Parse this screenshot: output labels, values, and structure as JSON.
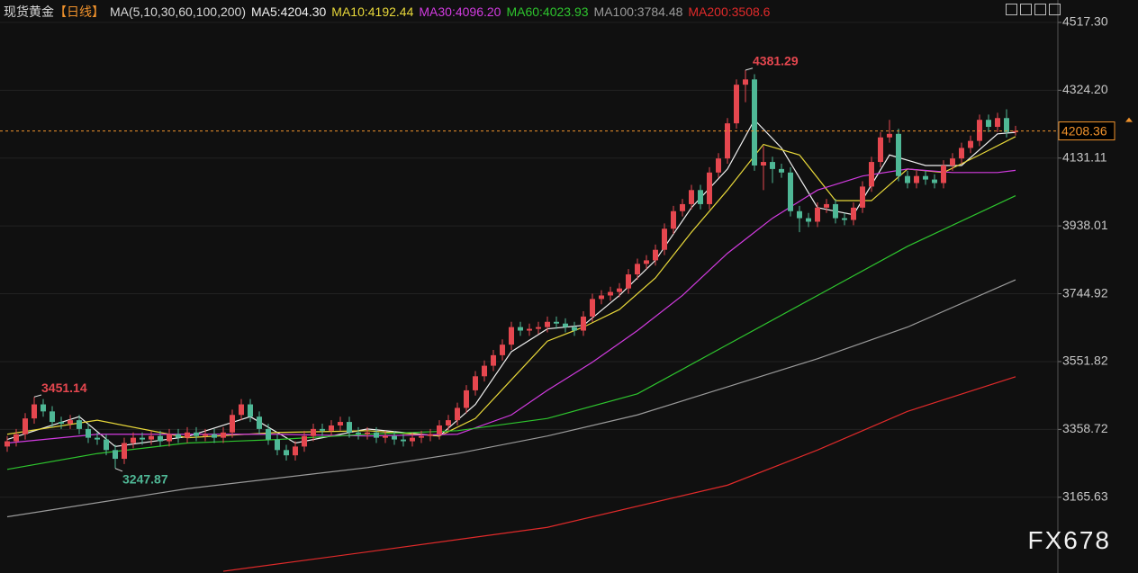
{
  "chart_data": {
    "type": "candlestick",
    "title": "现货黄金",
    "period": "【日线】",
    "indicator": "MA(5,10,30,60,100,200)",
    "watermark": "FX678",
    "up_color": "#e5474f",
    "down_color": "#4fb896",
    "open": [
      3310,
      3325,
      3345,
      3390,
      3430,
      3410,
      3380,
      3375,
      3385,
      3360,
      3335,
      3330,
      3300,
      3275,
      3320,
      3335,
      3330,
      3340,
      3325,
      3345,
      3335,
      3350,
      3340,
      3345,
      3335,
      3350,
      3400,
      3430,
      3395,
      3360,
      3330,
      3300,
      3285,
      3310,
      3340,
      3360,
      3355,
      3370,
      3380,
      3350,
      3345,
      3350,
      3335,
      3340,
      3330,
      3325,
      3335,
      3340,
      3345,
      3370,
      3385,
      3420,
      3470,
      3510,
      3540,
      3570,
      3600,
      3650,
      3640,
      3645,
      3650,
      3665,
      3660,
      3650,
      3640,
      3680,
      3730,
      3740,
      3750,
      3760,
      3800,
      3830,
      3840,
      3870,
      3930,
      3980,
      4000,
      4040,
      4000,
      4090,
      4130,
      4230,
      4340,
      4355,
      4110,
      4120,
      4100,
      4090,
      3980,
      3960,
      3950,
      3990,
      4000,
      3960,
      3955,
      3990,
      4050,
      4120,
      4190,
      4200,
      4080,
      4060,
      4080,
      4070,
      4060,
      4110,
      4130,
      4160,
      4180,
      4240,
      4220,
      4245,
      4205
    ],
    "high": [
      3340,
      3360,
      3405,
      3451.14,
      3445,
      3425,
      3395,
      3400,
      3400,
      3375,
      3350,
      3345,
      3315,
      3335,
      3350,
      3350,
      3355,
      3355,
      3360,
      3360,
      3365,
      3365,
      3360,
      3360,
      3365,
      3415,
      3445,
      3445,
      3410,
      3375,
      3345,
      3315,
      3325,
      3355,
      3375,
      3375,
      3385,
      3395,
      3395,
      3365,
      3365,
      3365,
      3355,
      3355,
      3345,
      3350,
      3355,
      3360,
      3385,
      3400,
      3435,
      3485,
      3525,
      3555,
      3585,
      3615,
      3665,
      3665,
      3660,
      3665,
      3680,
      3680,
      3675,
      3665,
      3695,
      3745,
      3755,
      3765,
      3775,
      3815,
      3845,
      3855,
      3885,
      3945,
      3995,
      4015,
      4055,
      4055,
      4105,
      4145,
      4245,
      4355,
      4381.29,
      4370,
      4165,
      4135,
      4115,
      4105,
      3995,
      3975,
      4005,
      4015,
      4015,
      3975,
      4005,
      4065,
      4135,
      4205,
      4240,
      4215,
      4095,
      4095,
      4095,
      4085,
      4125,
      4145,
      4175,
      4195,
      4255,
      4255,
      4260,
      4270,
      4223
    ],
    "low": [
      3295,
      3310,
      3330,
      3375,
      3395,
      3365,
      3360,
      3360,
      3345,
      3320,
      3315,
      3285,
      3247.87,
      3260,
      3305,
      3315,
      3315,
      3310,
      3310,
      3320,
      3320,
      3325,
      3325,
      3320,
      3320,
      3335,
      3385,
      3380,
      3345,
      3315,
      3285,
      3270,
      3270,
      3295,
      3325,
      3340,
      3340,
      3355,
      3335,
      3330,
      3330,
      3320,
      3320,
      3315,
      3310,
      3310,
      3320,
      3325,
      3330,
      3355,
      3370,
      3405,
      3455,
      3495,
      3525,
      3555,
      3585,
      3625,
      3625,
      3630,
      3635,
      3645,
      3635,
      3625,
      3625,
      3665,
      3715,
      3725,
      3735,
      3745,
      3785,
      3815,
      3825,
      3855,
      3915,
      3965,
      3985,
      3985,
      3985,
      4075,
      4115,
      4215,
      4290,
      4095,
      4040,
      4060,
      4075,
      3965,
      3920,
      3935,
      3935,
      3975,
      3945,
      3940,
      3940,
      3975,
      4035,
      4105,
      4175,
      4065,
      4045,
      4045,
      4055,
      4045,
      4045,
      4095,
      4115,
      4145,
      4165,
      4205,
      4205,
      4190,
      4195
    ],
    "close": [
      3325,
      3345,
      3390,
      3430,
      3410,
      3380,
      3375,
      3385,
      3360,
      3335,
      3330,
      3300,
      3275,
      3320,
      3335,
      3330,
      3340,
      3325,
      3345,
      3335,
      3350,
      3340,
      3345,
      3335,
      3350,
      3400,
      3430,
      3395,
      3360,
      3330,
      3300,
      3285,
      3310,
      3340,
      3360,
      3355,
      3370,
      3380,
      3350,
      3345,
      3350,
      3335,
      3340,
      3330,
      3325,
      3335,
      3340,
      3345,
      3370,
      3385,
      3420,
      3470,
      3510,
      3540,
      3570,
      3600,
      3650,
      3640,
      3645,
      3650,
      3665,
      3660,
      3650,
      3640,
      3680,
      3730,
      3740,
      3750,
      3760,
      3800,
      3830,
      3840,
      3870,
      3930,
      3980,
      4000,
      4040,
      4000,
      4090,
      4130,
      4230,
      4340,
      4355,
      4110,
      4120,
      4100,
      4090,
      3980,
      3960,
      3950,
      3990,
      4000,
      3960,
      3955,
      3990,
      4050,
      4120,
      4190,
      4200,
      4080,
      4060,
      4080,
      4070,
      4060,
      4110,
      4130,
      4160,
      4180,
      4240,
      4220,
      4245,
      4205,
      4208.36
    ],
    "series": [
      {
        "name": "MA5:4204.30",
        "color": "#f0f0f0",
        "x": [
          0,
          8,
          12,
          20,
          27,
          32,
          40,
          48,
          52,
          56,
          60,
          64,
          68,
          72,
          76,
          80,
          83,
          86,
          90,
          94,
          98,
          102,
          106,
          110,
          112
        ],
        "values": [
          3330,
          3395,
          3310,
          3338,
          3395,
          3320,
          3360,
          3340,
          3430,
          3580,
          3645,
          3655,
          3740,
          3840,
          3990,
          4100,
          4240,
          4160,
          3990,
          3970,
          4140,
          4110,
          4110,
          4200,
          4204.3
        ]
      },
      {
        "name": "MA10:4192.44",
        "color": "#e8d83a",
        "x": [
          0,
          10,
          20,
          30,
          40,
          48,
          52,
          56,
          60,
          64,
          68,
          72,
          76,
          80,
          84,
          88,
          92,
          96,
          100,
          104,
          108,
          112
        ],
        "values": [
          3345,
          3385,
          3335,
          3350,
          3355,
          3340,
          3390,
          3500,
          3610,
          3650,
          3700,
          3790,
          3920,
          4040,
          4170,
          4140,
          4010,
          4010,
          4100,
          4090,
          4140,
          4192.44
        ]
      },
      {
        "name": "MA30:4096.20",
        "color": "#d23be0",
        "x": [
          0,
          10,
          20,
          30,
          40,
          50,
          56,
          60,
          65,
          70,
          75,
          80,
          85,
          90,
          95,
          100,
          105,
          110,
          112
        ],
        "values": [
          3320,
          3345,
          3345,
          3345,
          3340,
          3345,
          3400,
          3470,
          3550,
          3640,
          3740,
          3860,
          3960,
          4040,
          4080,
          4100,
          4090,
          4090,
          4096.2
        ]
      },
      {
        "name": "MA60:4023.93",
        "color": "#2ec52e",
        "x": [
          0,
          10,
          20,
          30,
          40,
          50,
          60,
          70,
          80,
          90,
          100,
          112
        ],
        "values": [
          3245,
          3290,
          3320,
          3330,
          3345,
          3355,
          3390,
          3460,
          3600,
          3740,
          3880,
          4023.93
        ]
      },
      {
        "name": "MA100:3784.48",
        "color": "#9a9a9a",
        "x": [
          0,
          20,
          40,
          50,
          60,
          70,
          80,
          90,
          100,
          112
        ],
        "values": [
          3110,
          3190,
          3250,
          3290,
          3340,
          3400,
          3480,
          3560,
          3650,
          3784.48
        ]
      },
      {
        "name": "MA200:3508.6",
        "color": "#e02a2a",
        "x": [
          24,
          40,
          60,
          80,
          90,
          100,
          112
        ],
        "values": [
          2955,
          3010,
          3080,
          3200,
          3300,
          3410,
          3508.6
        ]
      }
    ],
    "last_price": 4208.36,
    "last_price_color": "#f0922c",
    "ylim": [
      2950,
      4535
    ],
    "yticks": [
      {
        "value": 4517.3,
        "label": "4517.30"
      },
      {
        "value": 4324.2,
        "label": "4324.20"
      },
      4131.11,
      3938.01,
      3744.92,
      3551.82,
      3358.72,
      3165.63
    ],
    "grid": true
  }
}
